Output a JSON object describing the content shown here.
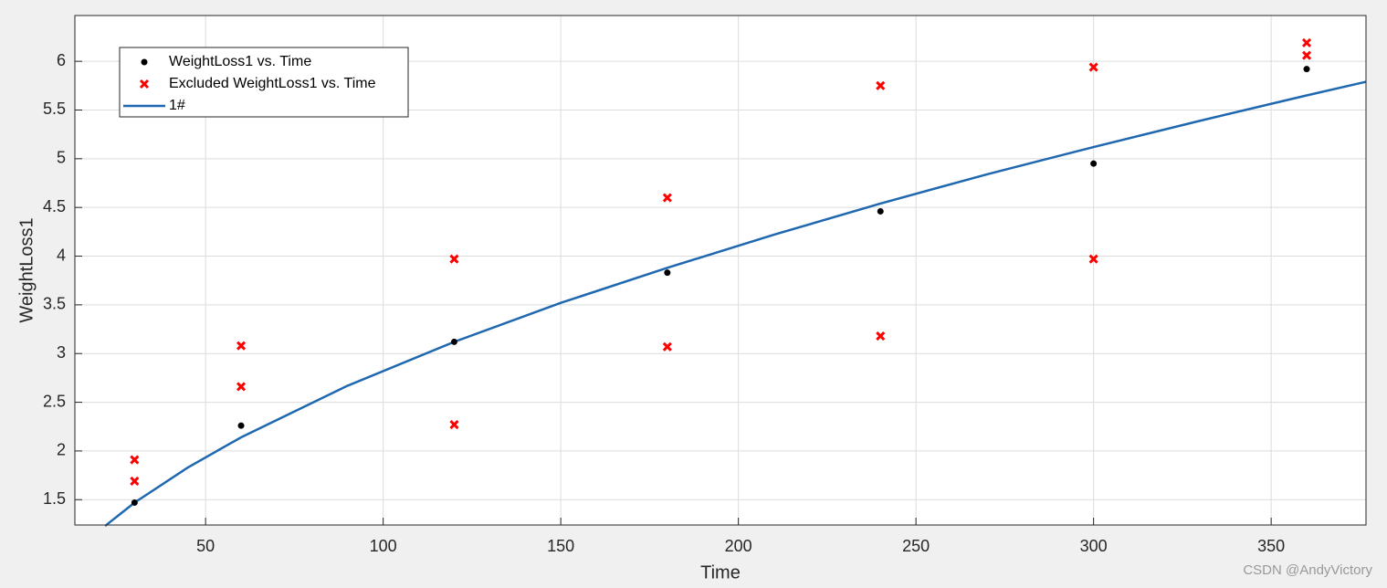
{
  "chart_data": {
    "type": "scatter",
    "x_label": "Time",
    "y_label": "WeightLoss1",
    "xlim": [
      13.2,
      376.7
    ],
    "xticks": [
      50,
      100,
      150,
      200,
      250,
      300,
      350
    ],
    "ylim": [
      1.24,
      6.47
    ],
    "yticks": [
      1.5,
      2,
      2.5,
      3,
      3.5,
      4,
      4.5,
      5,
      5.5,
      6
    ],
    "grid": true,
    "legend": "upper left",
    "series": [
      {
        "name": "WeightLoss1 vs. Time",
        "color": "#000000",
        "marker": "dot",
        "x": [
          30,
          60,
          120,
          180,
          240,
          300,
          360
        ],
        "values": [
          1.47,
          2.26,
          3.12,
          3.83,
          4.46,
          4.95,
          5.92
        ]
      },
      {
        "name": "Excluded WeightLoss1 vs. Time",
        "color": "#ff0000",
        "marker": "x",
        "x": [
          30,
          30,
          60,
          60,
          120,
          120,
          180,
          180,
          240,
          240,
          300,
          300,
          360,
          360
        ],
        "values": [
          1.91,
          1.69,
          3.08,
          2.66,
          3.97,
          2.27,
          4.6,
          3.07,
          5.75,
          3.18,
          5.94,
          3.97,
          6.19,
          6.06
        ]
      },
      {
        "name": "1#",
        "color": "#1f68b0",
        "marker": "line",
        "x": [
          21.7,
          30,
          45,
          60,
          90,
          120,
          150,
          180,
          210,
          240,
          270,
          300,
          330,
          360,
          376.7
        ],
        "values": [
          1.23,
          1.47,
          1.83,
          2.14,
          2.67,
          3.12,
          3.52,
          3.88,
          4.22,
          4.54,
          4.84,
          5.12,
          5.39,
          5.65,
          5.79
        ]
      }
    ],
    "watermark": "CSDN @AndyVictory"
  }
}
